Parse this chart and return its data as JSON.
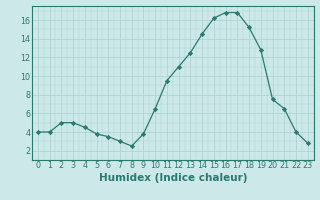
{
  "x": [
    0,
    1,
    2,
    3,
    4,
    5,
    6,
    7,
    8,
    9,
    10,
    11,
    12,
    13,
    14,
    15,
    16,
    17,
    18,
    19,
    20,
    21,
    22,
    23
  ],
  "y": [
    4.0,
    4.0,
    5.0,
    5.0,
    4.5,
    3.8,
    3.5,
    3.0,
    2.5,
    3.8,
    6.5,
    9.5,
    11.0,
    12.5,
    14.5,
    16.2,
    16.8,
    16.8,
    15.2,
    12.8,
    7.5,
    6.5,
    4.0,
    2.8
  ],
  "line_color": "#2a7a6f",
  "marker": "D",
  "marker_size": 2.2,
  "bg_color": "#cce8e8",
  "grid_color": "#aed4d4",
  "xlabel": "Humidex (Indice chaleur)",
  "xlim": [
    -0.5,
    23.5
  ],
  "ylim": [
    1.5,
    17.5
  ],
  "yticks": [
    2,
    4,
    6,
    8,
    10,
    12,
    14,
    16
  ],
  "xticks": [
    0,
    1,
    2,
    3,
    4,
    5,
    6,
    7,
    8,
    9,
    10,
    11,
    12,
    13,
    14,
    15,
    16,
    17,
    18,
    19,
    20,
    21,
    22,
    23
  ],
  "tick_label_fontsize": 5.8,
  "xlabel_fontsize": 7.5
}
